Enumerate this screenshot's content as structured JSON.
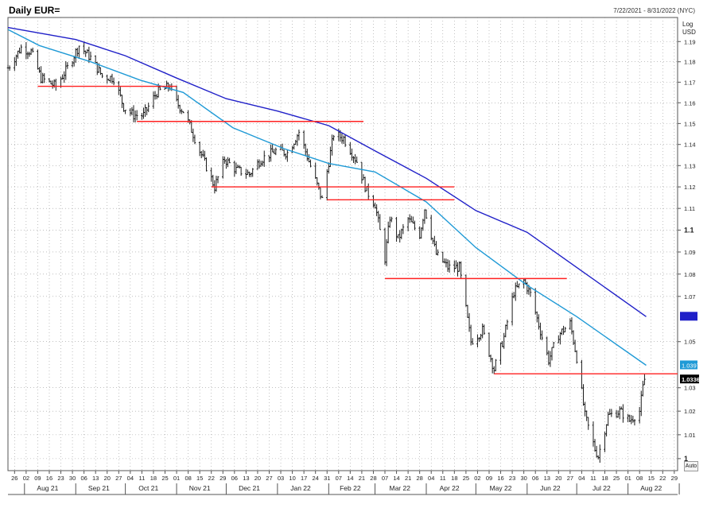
{
  "header": {
    "title": "Daily EUR=",
    "date_range": "7/22/2021 - 8/31/2022 (NYC)",
    "scale_label": "Log",
    "currency_label": "USD",
    "auto_label": "Auto"
  },
  "colors": {
    "candles": "#1a1a1a",
    "ma_short": "#1f9ad6",
    "ma_long": "#2020c8",
    "support_lines": "#ff2020",
    "grid": "#9a9a9a"
  },
  "chart_data": {
    "type": "line",
    "instrument": "EUR=",
    "frequency": "Daily",
    "scale": "log",
    "grid": true,
    "xlim": [
      "2021-07-22",
      "2022-08-31"
    ],
    "ylim": [
      0.995,
      1.202
    ],
    "y_ticks": [
      {
        "value": 1.19,
        "label": "1.19"
      },
      {
        "value": 1.18,
        "label": "1.18"
      },
      {
        "value": 1.17,
        "label": "1.17"
      },
      {
        "value": 1.16,
        "label": "1.16"
      },
      {
        "value": 1.15,
        "label": "1.15"
      },
      {
        "value": 1.14,
        "label": "1.14"
      },
      {
        "value": 1.13,
        "label": "1.13"
      },
      {
        "value": 1.12,
        "label": "1.12"
      },
      {
        "value": 1.11,
        "label": "1.11"
      },
      {
        "value": 1.1,
        "label": "1.1"
      },
      {
        "value": 1.09,
        "label": "1.09"
      },
      {
        "value": 1.08,
        "label": "1.08"
      },
      {
        "value": 1.07,
        "label": "1.07"
      },
      {
        "value": 1.05,
        "label": "1.05"
      },
      {
        "value": 1.03,
        "label": "1.03"
      },
      {
        "value": 1.02,
        "label": "1.02"
      },
      {
        "value": 1.01,
        "label": "1.01"
      },
      {
        "value": 1.0,
        "label": "1"
      }
    ],
    "x_day_ticks": [
      {
        "date": "2021-07-26",
        "label": "26"
      },
      {
        "date": "2021-08-02",
        "label": "02"
      },
      {
        "date": "2021-08-09",
        "label": "09"
      },
      {
        "date": "2021-08-16",
        "label": "16"
      },
      {
        "date": "2021-08-23",
        "label": "23"
      },
      {
        "date": "2021-08-30",
        "label": "30"
      },
      {
        "date": "2021-09-06",
        "label": "06"
      },
      {
        "date": "2021-09-13",
        "label": "13"
      },
      {
        "date": "2021-09-20",
        "label": "20"
      },
      {
        "date": "2021-09-27",
        "label": "27"
      },
      {
        "date": "2021-10-04",
        "label": "04"
      },
      {
        "date": "2021-10-11",
        "label": "11"
      },
      {
        "date": "2021-10-18",
        "label": "18"
      },
      {
        "date": "2021-10-25",
        "label": "25"
      },
      {
        "date": "2021-11-01",
        "label": "01"
      },
      {
        "date": "2021-11-08",
        "label": "08"
      },
      {
        "date": "2021-11-15",
        "label": "15"
      },
      {
        "date": "2021-11-22",
        "label": "22"
      },
      {
        "date": "2021-11-29",
        "label": "29"
      },
      {
        "date": "2021-12-06",
        "label": "06"
      },
      {
        "date": "2021-12-13",
        "label": "13"
      },
      {
        "date": "2021-12-20",
        "label": "20"
      },
      {
        "date": "2021-12-27",
        "label": "27"
      },
      {
        "date": "2022-01-03",
        "label": "03"
      },
      {
        "date": "2022-01-10",
        "label": "10"
      },
      {
        "date": "2022-01-17",
        "label": "17"
      },
      {
        "date": "2022-01-24",
        "label": "24"
      },
      {
        "date": "2022-01-31",
        "label": "31"
      },
      {
        "date": "2022-02-07",
        "label": "07"
      },
      {
        "date": "2022-02-14",
        "label": "14"
      },
      {
        "date": "2022-02-21",
        "label": "21"
      },
      {
        "date": "2022-02-28",
        "label": "28"
      },
      {
        "date": "2022-03-07",
        "label": "07"
      },
      {
        "date": "2022-03-14",
        "label": "14"
      },
      {
        "date": "2022-03-21",
        "label": "21"
      },
      {
        "date": "2022-03-28",
        "label": "28"
      },
      {
        "date": "2022-04-04",
        "label": "04"
      },
      {
        "date": "2022-04-11",
        "label": "11"
      },
      {
        "date": "2022-04-18",
        "label": "18"
      },
      {
        "date": "2022-04-25",
        "label": "25"
      },
      {
        "date": "2022-05-02",
        "label": "02"
      },
      {
        "date": "2022-05-09",
        "label": "09"
      },
      {
        "date": "2022-05-16",
        "label": "16"
      },
      {
        "date": "2022-05-23",
        "label": "23"
      },
      {
        "date": "2022-05-30",
        "label": "30"
      },
      {
        "date": "2022-06-06",
        "label": "06"
      },
      {
        "date": "2022-06-13",
        "label": "13"
      },
      {
        "date": "2022-06-20",
        "label": "20"
      },
      {
        "date": "2022-06-27",
        "label": "27"
      },
      {
        "date": "2022-07-04",
        "label": "04"
      },
      {
        "date": "2022-07-11",
        "label": "11"
      },
      {
        "date": "2022-07-18",
        "label": "18"
      },
      {
        "date": "2022-07-25",
        "label": "25"
      },
      {
        "date": "2022-08-01",
        "label": "01"
      },
      {
        "date": "2022-08-08",
        "label": "08"
      },
      {
        "date": "2022-08-15",
        "label": "15"
      },
      {
        "date": "2022-08-22",
        "label": "22"
      },
      {
        "date": "2022-08-29",
        "label": "29"
      }
    ],
    "x_month_ticks": [
      {
        "date": "2021-08-15",
        "label": "Aug 21"
      },
      {
        "date": "2021-09-15",
        "label": "Sep 21"
      },
      {
        "date": "2021-10-15",
        "label": "Oct 21"
      },
      {
        "date": "2021-11-15",
        "label": "Nov 21"
      },
      {
        "date": "2021-12-15",
        "label": "Dec 21"
      },
      {
        "date": "2022-01-15",
        "label": "Jan 22"
      },
      {
        "date": "2022-02-14",
        "label": "Feb 22"
      },
      {
        "date": "2022-03-16",
        "label": "Mar 22"
      },
      {
        "date": "2022-04-15",
        "label": "Apr 22"
      },
      {
        "date": "2022-05-16",
        "label": "May 22"
      },
      {
        "date": "2022-06-15",
        "label": "Jun 22"
      },
      {
        "date": "2022-07-16",
        "label": "Jul 22"
      },
      {
        "date": "2022-08-15",
        "label": "Aug 22"
      }
    ],
    "month_separators": [
      "2021-08-01",
      "2021-09-01",
      "2021-10-01",
      "2021-11-01",
      "2021-12-01",
      "2022-01-01",
      "2022-02-01",
      "2022-03-01",
      "2022-04-01",
      "2022-05-01",
      "2022-06-01",
      "2022-07-01",
      "2022-08-01",
      "2022-09-01"
    ],
    "price_path": [
      {
        "date": "2021-07-22",
        "close": 1.177
      },
      {
        "date": "2021-07-30",
        "close": 1.187
      },
      {
        "date": "2021-08-05",
        "close": 1.185
      },
      {
        "date": "2021-08-11",
        "close": 1.172
      },
      {
        "date": "2021-08-20",
        "close": 1.168
      },
      {
        "date": "2021-08-27",
        "close": 1.177
      },
      {
        "date": "2021-09-03",
        "close": 1.188
      },
      {
        "date": "2021-09-10",
        "close": 1.182
      },
      {
        "date": "2021-09-17",
        "close": 1.173
      },
      {
        "date": "2021-09-24",
        "close": 1.172
      },
      {
        "date": "2021-09-30",
        "close": 1.158
      },
      {
        "date": "2021-10-06",
        "close": 1.154
      },
      {
        "date": "2021-10-12",
        "close": 1.154
      },
      {
        "date": "2021-10-20",
        "close": 1.165
      },
      {
        "date": "2021-10-28",
        "close": 1.168
      },
      {
        "date": "2021-11-01",
        "close": 1.16
      },
      {
        "date": "2021-11-05",
        "close": 1.156
      },
      {
        "date": "2021-11-10",
        "close": 1.147
      },
      {
        "date": "2021-11-15",
        "close": 1.137
      },
      {
        "date": "2021-11-24",
        "close": 1.12
      },
      {
        "date": "2021-11-30",
        "close": 1.133
      },
      {
        "date": "2021-12-07",
        "close": 1.128
      },
      {
        "date": "2021-12-15",
        "close": 1.126
      },
      {
        "date": "2021-12-22",
        "close": 1.133
      },
      {
        "date": "2021-12-31",
        "close": 1.137
      },
      {
        "date": "2022-01-07",
        "close": 1.136
      },
      {
        "date": "2022-01-14",
        "close": 1.146
      },
      {
        "date": "2022-01-20",
        "close": 1.132
      },
      {
        "date": "2022-01-28",
        "close": 1.114
      },
      {
        "date": "2022-02-04",
        "close": 1.145
      },
      {
        "date": "2022-02-10",
        "close": 1.143
      },
      {
        "date": "2022-02-18",
        "close": 1.132
      },
      {
        "date": "2022-02-24",
        "close": 1.118
      },
      {
        "date": "2022-03-01",
        "close": 1.112
      },
      {
        "date": "2022-03-07",
        "close": 1.087
      },
      {
        "date": "2022-03-10",
        "close": 1.106
      },
      {
        "date": "2022-03-15",
        "close": 1.096
      },
      {
        "date": "2022-03-21",
        "close": 1.105
      },
      {
        "date": "2022-03-28",
        "close": 1.098
      },
      {
        "date": "2022-03-31",
        "close": 1.11
      },
      {
        "date": "2022-04-07",
        "close": 1.089
      },
      {
        "date": "2022-04-14",
        "close": 1.083
      },
      {
        "date": "2022-04-21",
        "close": 1.083
      },
      {
        "date": "2022-04-28",
        "close": 1.05
      },
      {
        "date": "2022-05-05",
        "close": 1.055
      },
      {
        "date": "2022-05-12",
        "close": 1.038
      },
      {
        "date": "2022-05-18",
        "close": 1.052
      },
      {
        "date": "2022-05-24",
        "close": 1.072
      },
      {
        "date": "2022-05-30",
        "close": 1.077
      },
      {
        "date": "2022-06-03",
        "close": 1.071
      },
      {
        "date": "2022-06-10",
        "close": 1.052
      },
      {
        "date": "2022-06-14",
        "close": 1.042
      },
      {
        "date": "2022-06-20",
        "close": 1.053
      },
      {
        "date": "2022-06-27",
        "close": 1.058
      },
      {
        "date": "2022-07-01",
        "close": 1.043
      },
      {
        "date": "2022-07-06",
        "close": 1.018
      },
      {
        "date": "2022-07-12",
        "close": 1.004
      },
      {
        "date": "2022-07-14",
        "close": 1.001
      },
      {
        "date": "2022-07-20",
        "close": 1.018
      },
      {
        "date": "2022-07-27",
        "close": 1.02
      },
      {
        "date": "2022-08-02",
        "close": 1.016
      },
      {
        "date": "2022-08-08",
        "close": 1.02
      },
      {
        "date": "2022-08-10",
        "close": 1.03
      },
      {
        "date": "2022-08-11",
        "close": 1.0336
      }
    ],
    "series": [
      {
        "name": "",
        "color": "#1f9ad6",
        "points": [
          {
            "date": "2021-07-22",
            "value": 1.196
          },
          {
            "date": "2021-08-10",
            "value": 1.188
          },
          {
            "date": "2021-09-10",
            "value": 1.18
          },
          {
            "date": "2021-10-10",
            "value": 1.171
          },
          {
            "date": "2021-11-05",
            "value": 1.165
          },
          {
            "date": "2021-12-05",
            "value": 1.148
          },
          {
            "date": "2022-01-05",
            "value": 1.138
          },
          {
            "date": "2022-02-01",
            "value": 1.131
          },
          {
            "date": "2022-03-01",
            "value": 1.127
          },
          {
            "date": "2022-04-01",
            "value": 1.113
          },
          {
            "date": "2022-05-01",
            "value": 1.092
          },
          {
            "date": "2022-06-01",
            "value": 1.075
          },
          {
            "date": "2022-07-01",
            "value": 1.061
          },
          {
            "date": "2022-08-12",
            "value": 1.0397
          }
        ],
        "last_label": "1.0397"
      },
      {
        "name": "",
        "color": "#2020c8",
        "points": [
          {
            "date": "2021-07-22",
            "value": 1.197
          },
          {
            "date": "2021-09-01",
            "value": 1.191
          },
          {
            "date": "2021-10-01",
            "value": 1.183
          },
          {
            "date": "2021-11-01",
            "value": 1.172
          },
          {
            "date": "2021-12-01",
            "value": 1.162
          },
          {
            "date": "2022-01-01",
            "value": 1.156
          },
          {
            "date": "2022-02-01",
            "value": 1.149
          },
          {
            "date": "2022-03-01",
            "value": 1.137
          },
          {
            "date": "2022-04-01",
            "value": 1.124
          },
          {
            "date": "2022-05-01",
            "value": 1.109
          },
          {
            "date": "2022-06-01",
            "value": 1.099
          },
          {
            "date": "2022-07-01",
            "value": 1.083
          },
          {
            "date": "2022-08-12",
            "value": 1.061
          }
        ],
        "last_label": ""
      }
    ],
    "last_price_label": "1.0336",
    "horizontal_lines": [
      {
        "value": 1.168,
        "from": "2021-08-09",
        "to": "2021-11-01"
      },
      {
        "value": 1.151,
        "from": "2021-10-08",
        "to": "2022-02-22"
      },
      {
        "value": 1.12,
        "from": "2021-11-22",
        "to": "2022-04-18"
      },
      {
        "value": 1.114,
        "from": "2022-01-31",
        "to": "2022-04-18"
      },
      {
        "value": 1.078,
        "from": "2022-03-07",
        "to": "2022-06-25"
      },
      {
        "value": 1.036,
        "from": "2022-05-12",
        "to": "2022-08-31"
      }
    ]
  }
}
